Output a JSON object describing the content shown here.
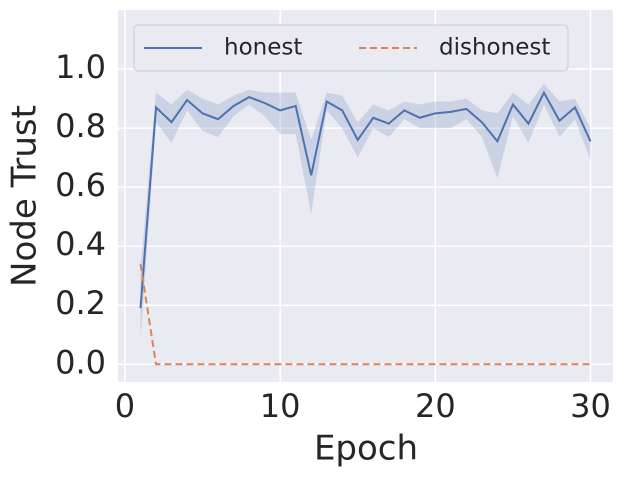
{
  "chart_data": {
    "type": "line",
    "xlabel": "Epoch",
    "ylabel": "Node Trust",
    "x": [
      1,
      2,
      3,
      4,
      5,
      6,
      7,
      8,
      9,
      10,
      11,
      12,
      13,
      14,
      15,
      16,
      17,
      18,
      19,
      20,
      21,
      22,
      23,
      24,
      25,
      26,
      27,
      28,
      29,
      30
    ],
    "series": [
      {
        "name": "honest",
        "color": "#4c72b0",
        "dash": false,
        "values": [
          0.19,
          0.87,
          0.82,
          0.895,
          0.85,
          0.83,
          0.875,
          0.905,
          0.885,
          0.86,
          0.875,
          0.64,
          0.89,
          0.86,
          0.76,
          0.835,
          0.815,
          0.86,
          0.835,
          0.85,
          0.855,
          0.865,
          0.82,
          0.755,
          0.88,
          0.815,
          0.92,
          0.825,
          0.87,
          0.755
        ],
        "lower": [
          0.08,
          0.82,
          0.75,
          0.86,
          0.79,
          0.77,
          0.84,
          0.88,
          0.84,
          0.78,
          0.78,
          0.51,
          0.86,
          0.8,
          0.7,
          0.8,
          0.77,
          0.83,
          0.8,
          0.8,
          0.8,
          0.83,
          0.77,
          0.63,
          0.84,
          0.75,
          0.88,
          0.77,
          0.83,
          0.69
        ],
        "upper": [
          0.32,
          0.92,
          0.88,
          0.93,
          0.9,
          0.88,
          0.91,
          0.93,
          0.92,
          0.92,
          0.92,
          0.76,
          0.92,
          0.91,
          0.82,
          0.88,
          0.86,
          0.89,
          0.88,
          0.89,
          0.89,
          0.9,
          0.86,
          0.85,
          0.92,
          0.88,
          0.95,
          0.89,
          0.9,
          0.8
        ]
      },
      {
        "name": "dishonest",
        "color": "#dd8452",
        "dash": true,
        "values": [
          0.34,
          0,
          0,
          0,
          0,
          0,
          0,
          0,
          0,
          0,
          0,
          0,
          0,
          0,
          0,
          0,
          0,
          0,
          0,
          0,
          0,
          0,
          0,
          0,
          0,
          0,
          0,
          0,
          0,
          0
        ]
      }
    ],
    "xlim": [
      -0.45,
      31.45
    ],
    "xticks": [
      0,
      10,
      20,
      30
    ],
    "ylim": [
      -0.06,
      1.2
    ],
    "yticks": [
      {
        "value": 0,
        "label": "0.0"
      },
      {
        "value": 0.2,
        "label": "0.2"
      },
      {
        "value": 0.4,
        "label": "0.4"
      },
      {
        "value": 0.6,
        "label": "0.6"
      },
      {
        "value": 0.8,
        "label": "0.8"
      },
      {
        "value": 1,
        "label": "1.0"
      }
    ],
    "grid": true,
    "legend": "upper-left",
    "legend_columns": 2
  }
}
